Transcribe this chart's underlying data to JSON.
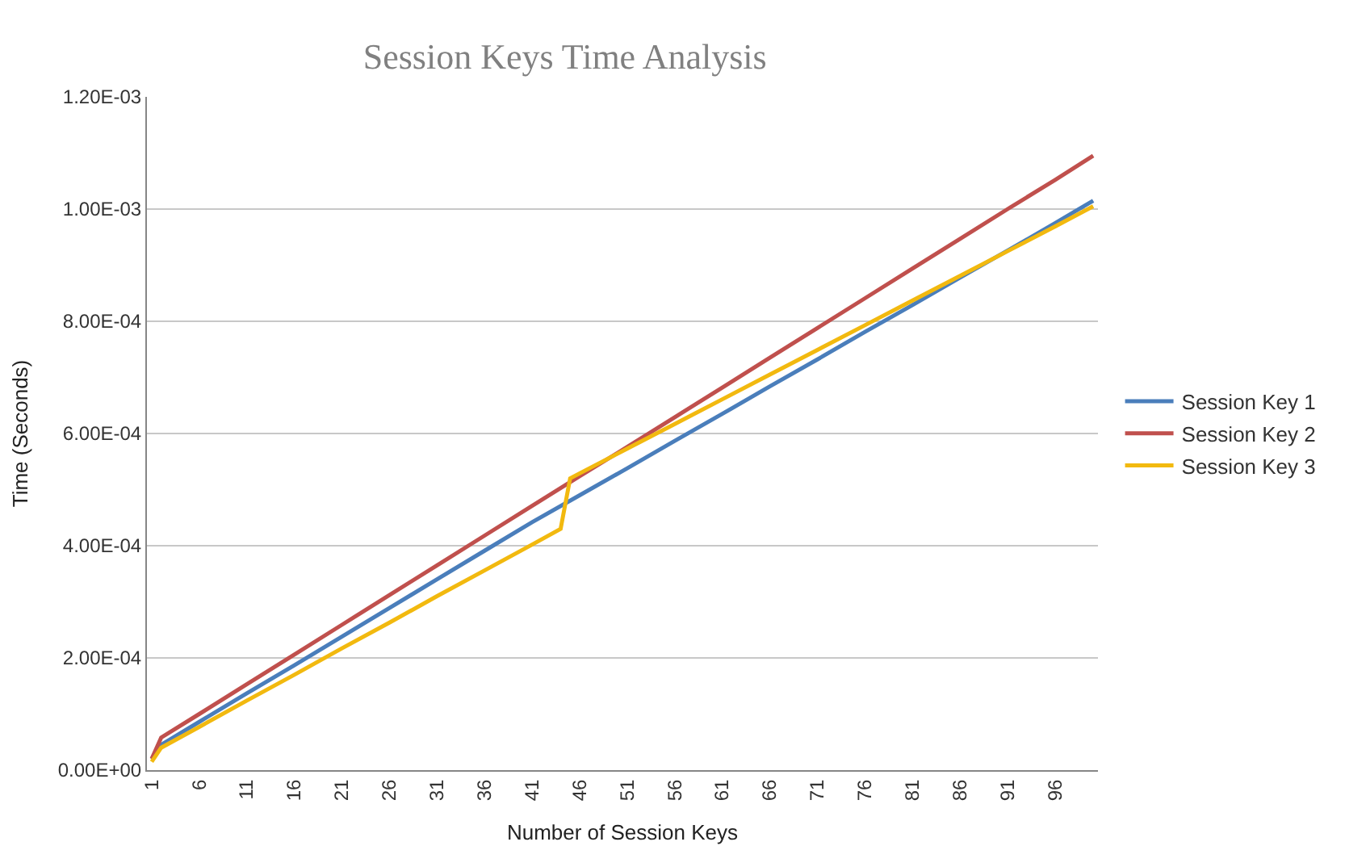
{
  "chart_data": {
    "type": "line",
    "title": "Session Keys Time Analysis",
    "xlabel": "Number of Session Keys",
    "ylabel": "Time (Seconds)",
    "xlim": [
      0.5,
      100.5
    ],
    "xticks": [
      1,
      6,
      11,
      16,
      21,
      26,
      31,
      36,
      41,
      46,
      51,
      56,
      61,
      66,
      71,
      76,
      81,
      86,
      91,
      96
    ],
    "ylim": [
      0,
      0.0012
    ],
    "yticks": [
      {
        "value": 0,
        "label": "0.00E+00"
      },
      {
        "value": 0.0002,
        "label": "2.00E-04"
      },
      {
        "value": 0.0004,
        "label": "4.00E-04"
      },
      {
        "value": 0.0006,
        "label": "6.00E-04"
      },
      {
        "value": 0.0008,
        "label": "8.00E-04"
      },
      {
        "value": 0.001,
        "label": "1.00E-03"
      },
      {
        "value": 0.0012,
        "label": "1.20E-03"
      }
    ],
    "grid": "y",
    "legend": "right",
    "marker": "none",
    "line_style": "solid",
    "series": [
      {
        "name": "Session Key 1",
        "color": "#4a7ebb",
        "x": [
          1,
          2,
          6,
          11,
          16,
          21,
          26,
          31,
          36,
          41,
          46,
          51,
          56,
          61,
          66,
          71,
          76,
          81,
          86,
          91,
          96,
          100
        ],
        "values": [
          2e-05,
          4.5e-05,
          8.6e-05,
          0.000137,
          0.000187,
          0.000238,
          0.000289,
          0.00034,
          0.000391,
          0.000442,
          0.00049,
          0.000538,
          0.000587,
          0.000635,
          0.000684,
          0.000732,
          0.000781,
          0.000829,
          0.000878,
          0.000926,
          0.000975,
          0.001015
        ]
      },
      {
        "name": "Session Key 2",
        "color": "#c0504d",
        "x": [
          1,
          2,
          6,
          11,
          16,
          21,
          26,
          31,
          36,
          41,
          46,
          51,
          56,
          61,
          66,
          71,
          76,
          81,
          86,
          91,
          96,
          100
        ],
        "values": [
          2e-05,
          5.8e-05,
          0.0001,
          0.000153,
          0.000206,
          0.000259,
          0.000312,
          0.000365,
          0.000418,
          0.000471,
          0.000524,
          0.000576,
          0.000629,
          0.000682,
          0.000735,
          0.000788,
          0.000841,
          0.000894,
          0.000947,
          0.001,
          0.001052,
          0.001095
        ]
      },
      {
        "name": "Session Key 3",
        "color": "#f2b90f",
        "x": [
          1,
          2,
          6,
          11,
          16,
          21,
          26,
          31,
          36,
          41,
          44,
          45,
          46,
          51,
          56,
          61,
          66,
          71,
          76,
          81,
          86,
          91,
          96,
          100
        ],
        "values": [
          1.5e-05,
          4e-05,
          7.7e-05,
          0.000124,
          0.00017,
          0.000217,
          0.000263,
          0.00031,
          0.000356,
          0.000402,
          0.00043,
          0.00052,
          0.000529,
          0.000573,
          0.000617,
          0.000661,
          0.000705,
          0.000749,
          0.000793,
          0.000837,
          0.000881,
          0.000925,
          0.000969,
          0.001005
        ]
      }
    ]
  }
}
